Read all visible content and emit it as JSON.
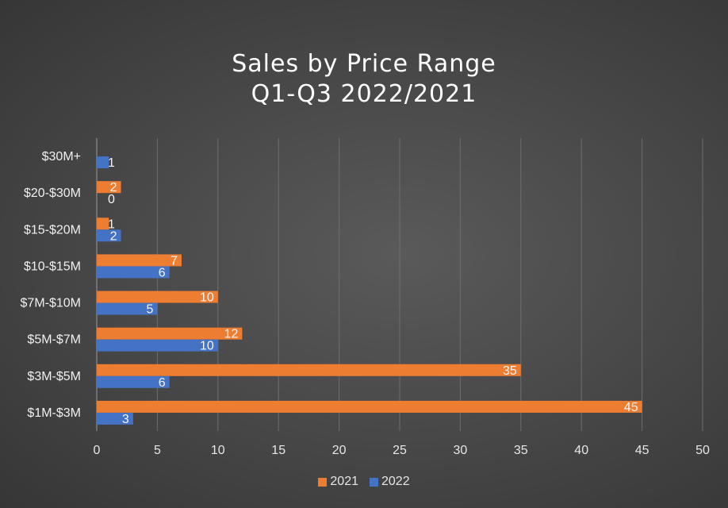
{
  "chart_data": {
    "type": "bar",
    "orientation": "horizontal",
    "title": "Sales by Price Range",
    "subtitle": "Q1-Q3 2022/2021",
    "categories": [
      "$1M-$3M",
      "$3M-$5M",
      "$5M-$7M",
      "$7M-$10M",
      "$10-$15M",
      "$15-$20M",
      "$20-$30M",
      "$30M+"
    ],
    "series": [
      {
        "name": "2021",
        "color": "#ed7d31",
        "values": [
          45,
          35,
          12,
          10,
          7,
          1,
          2,
          null
        ]
      },
      {
        "name": "2022",
        "color": "#4472c4",
        "values": [
          3,
          6,
          10,
          5,
          6,
          2,
          0,
          1
        ]
      }
    ],
    "xlim": [
      0,
      50
    ],
    "x_ticks": [
      0,
      5,
      10,
      15,
      20,
      25,
      30,
      35,
      40,
      45,
      50
    ],
    "grid": true,
    "legend_position": "bottom",
    "data_labels": true
  }
}
